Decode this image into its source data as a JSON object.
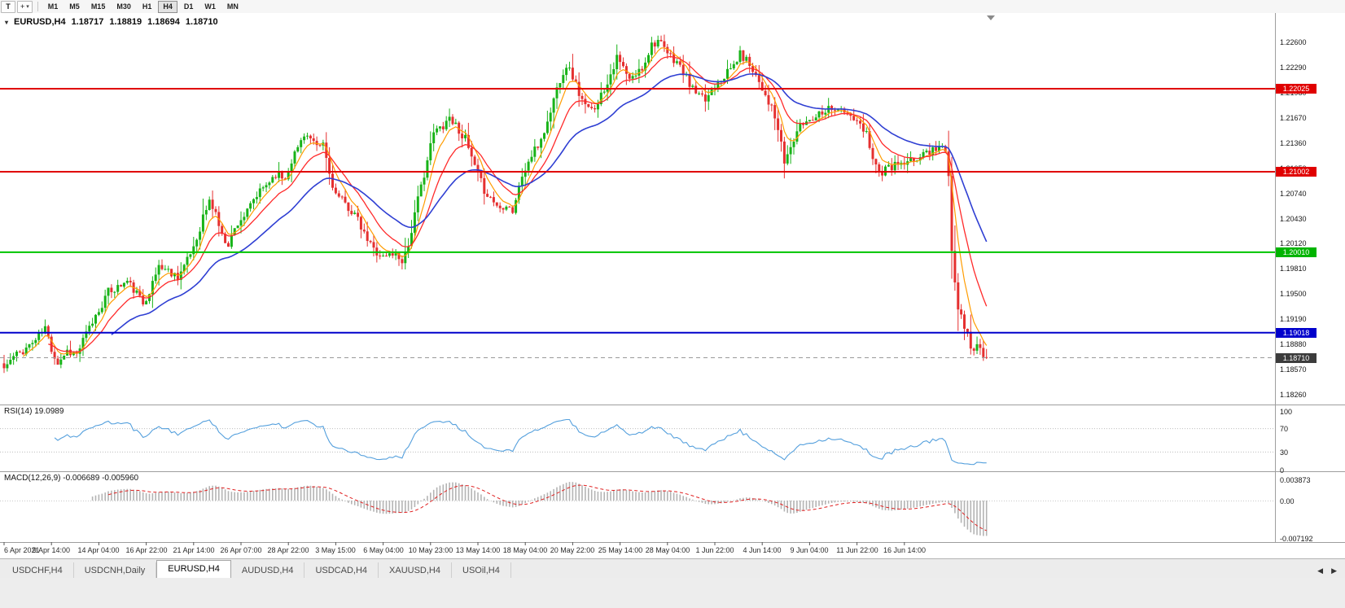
{
  "icons": {
    "collapse_arrow": "▾",
    "dropdown_caret": "▾",
    "cursor_tool": "+",
    "tabs_left": "◀",
    "tabs_right": "▶"
  },
  "toolbar": {
    "text_tool_label": "T",
    "timeframes": [
      "M1",
      "M5",
      "M15",
      "M30",
      "H1",
      "H4",
      "D1",
      "W1",
      "MN"
    ],
    "active_timeframe": "H4"
  },
  "chart_header": {
    "symbol_period": "EURUSD,H4",
    "open": "1.18717",
    "high": "1.18819",
    "low": "1.18694",
    "close": "1.18710"
  },
  "price_axis": {
    "gridline_labels": [
      "1.22600",
      "1.22290",
      "1.21980",
      "1.21670",
      "1.21360",
      "1.21050",
      "1.20740",
      "1.20430",
      "1.20120",
      "1.19810",
      "1.19500",
      "1.19190",
      "1.18880",
      "1.18570",
      "1.18260"
    ]
  },
  "levels": [
    {
      "value": "1.22025",
      "price": 1.22025,
      "color": "#e00000",
      "style": "solid",
      "width": 2,
      "badge_bg": "#e00000"
    },
    {
      "value": "1.21002",
      "price": 1.21002,
      "color": "#e00000",
      "style": "solid",
      "width": 2,
      "badge_bg": "#e00000"
    },
    {
      "value": "1.20010",
      "price": 1.2001,
      "color": "#00c400",
      "style": "solid",
      "width": 2,
      "badge_bg": "#00b400"
    },
    {
      "value": "1.19018",
      "price": 1.19018,
      "color": "#0000cc",
      "style": "solid",
      "width": 2,
      "badge_bg": "#0000cc"
    },
    {
      "value": "1.18710",
      "price": 1.1871,
      "color": "#999999",
      "style": "dashed",
      "width": 1,
      "badge_bg": "#3c3c3c"
    }
  ],
  "time_axis": {
    "labels": [
      "6 Apr 2021",
      "9 Apr 14:00",
      "14 Apr 04:00",
      "16 Apr 22:00",
      "21 Apr 14:00",
      "26 Apr 07:00",
      "28 Apr 22:00",
      "3 May 15:00",
      "6 May 04:00",
      "10 May 23:00",
      "13 May 14:00",
      "18 May 04:00",
      "20 May 22:00",
      "25 May 14:00",
      "28 May 04:00",
      "1 Jun 22:00",
      "4 Jun 14:00",
      "9 Jun 04:00",
      "11 Jun 22:00",
      "16 Jun 14:00"
    ]
  },
  "rsi_panel": {
    "title": "RSI(14) 19.0989",
    "axis_labels": [
      "100",
      "70",
      "30",
      "0"
    ],
    "dotted_levels": [
      70,
      30
    ],
    "line_color": "#55a0dd"
  },
  "macd_panel": {
    "title": "MACD(12,26,9) -0.006689 -0.005960",
    "axis_labels": [
      "0.003873",
      "0.00",
      "-0.007192"
    ],
    "hist_color": "#b4b4b4",
    "signal_color": "#e02020"
  },
  "tabs": {
    "items": [
      "USDCHF,H4",
      "USDCNH,Daily",
      "EURUSD,H4",
      "AUDUSD,H4",
      "USDCAD,H4",
      "XAUUSD,H4",
      "USOil,H4"
    ],
    "active": "EURUSD,H4"
  },
  "chart_data": {
    "type": "candlestick",
    "symbol": "EURUSD",
    "period": "H4",
    "bar_count": 312,
    "noise_seed": 11,
    "up_color": "#18b318",
    "down_color": "#e53030",
    "last_bar": {
      "o": 1.18717,
      "h": 1.18819,
      "l": 1.18694,
      "c": 1.1871
    },
    "support_resistance": [
      1.22025,
      1.21002,
      1.2001,
      1.19018
    ],
    "current_price": 1.1871,
    "rsi_period": 14,
    "rsi_last": 19.0989,
    "macd": {
      "fast": 12,
      "slow": 26,
      "signal": 9,
      "last": -0.006689,
      "signal_last": -0.00596,
      "axis_max": 0.003873,
      "axis_min": -0.007192
    },
    "moving_averages": [
      {
        "period": 6,
        "color": "#ff9c00",
        "width": 1.2
      },
      {
        "period": 14,
        "color": "#ff2a2a",
        "width": 1.3
      },
      {
        "period": 34,
        "color": "#2f3fd3",
        "width": 1.6
      }
    ],
    "close_anchors": [
      [
        0,
        1.1858
      ],
      [
        3,
        1.1872
      ],
      [
        6,
        1.188
      ],
      [
        10,
        1.1893
      ],
      [
        13,
        1.1908
      ],
      [
        15,
        1.1882
      ],
      [
        17,
        1.1865
      ],
      [
        20,
        1.188
      ],
      [
        23,
        1.1875
      ],
      [
        26,
        1.19
      ],
      [
        30,
        1.193
      ],
      [
        33,
        1.1952
      ],
      [
        36,
        1.1958
      ],
      [
        39,
        1.1965
      ],
      [
        42,
        1.195
      ],
      [
        44,
        1.1938
      ],
      [
        47,
        1.1962
      ],
      [
        49,
        1.1985
      ],
      [
        52,
        1.1978
      ],
      [
        55,
        1.1972
      ],
      [
        58,
        1.199
      ],
      [
        61,
        1.2018
      ],
      [
        63,
        1.2045
      ],
      [
        65,
        1.2063
      ],
      [
        67,
        1.205
      ],
      [
        69,
        1.202
      ],
      [
        71,
        1.2012
      ],
      [
        74,
        1.2038
      ],
      [
        77,
        1.205
      ],
      [
        79,
        1.2065
      ],
      [
        82,
        1.208
      ],
      [
        86,
        1.2098
      ],
      [
        89,
        1.2092
      ],
      [
        91,
        1.2115
      ],
      [
        93,
        1.213
      ],
      [
        95,
        1.2148
      ],
      [
        97,
        1.214
      ],
      [
        99,
        1.2128
      ],
      [
        101,
        1.2135
      ],
      [
        103,
        1.2098
      ],
      [
        105,
        1.2072
      ],
      [
        108,
        1.206
      ],
      [
        111,
        1.2048
      ],
      [
        114,
        1.2022
      ],
      [
        117,
        1.2005
      ],
      [
        120,
        1.1995
      ],
      [
        123,
        1.2
      ],
      [
        126,
        1.1992
      ],
      [
        128,
        1.201
      ],
      [
        131,
        1.2065
      ],
      [
        134,
        1.2115
      ],
      [
        136,
        1.2148
      ],
      [
        139,
        1.2158
      ],
      [
        141,
        1.2168
      ],
      [
        144,
        1.2152
      ],
      [
        146,
        1.214
      ],
      [
        149,
        1.2105
      ],
      [
        152,
        1.2078
      ],
      [
        154,
        1.2068
      ],
      [
        157,
        1.2055
      ],
      [
        159,
        1.2062
      ],
      [
        161,
        1.2052
      ],
      [
        164,
        1.2095
      ],
      [
        167,
        1.212
      ],
      [
        169,
        1.2132
      ],
      [
        172,
        1.216
      ],
      [
        174,
        1.219
      ],
      [
        176,
        1.2215
      ],
      [
        178,
        1.2232
      ],
      [
        180,
        1.2218
      ],
      [
        182,
        1.2197
      ],
      [
        184,
        1.218
      ],
      [
        186,
        1.2175
      ],
      [
        188,
        1.2188
      ],
      [
        190,
        1.2202
      ],
      [
        192,
        1.2222
      ],
      [
        194,
        1.224
      ],
      [
        196,
        1.2228
      ],
      [
        198,
        1.2212
      ],
      [
        200,
        1.222
      ],
      [
        202,
        1.2228
      ],
      [
        205,
        1.2258
      ],
      [
        207,
        1.2262
      ],
      [
        209,
        1.225
      ],
      [
        211,
        1.2242
      ],
      [
        213,
        1.2236
      ],
      [
        215,
        1.2222
      ],
      [
        218,
        1.2202
      ],
      [
        220,
        1.2192
      ],
      [
        222,
        1.2188
      ],
      [
        224,
        1.2202
      ],
      [
        226,
        1.2214
      ],
      [
        229,
        1.2222
      ],
      [
        231,
        1.2232
      ],
      [
        233,
        1.2245
      ],
      [
        235,
        1.2238
      ],
      [
        237,
        1.2228
      ],
      [
        239,
        1.2212
      ],
      [
        241,
        1.2196
      ],
      [
        243,
        1.2178
      ],
      [
        245,
        1.2152
      ],
      [
        247,
        1.2112
      ],
      [
        249,
        1.213
      ],
      [
        251,
        1.215
      ],
      [
        253,
        1.216
      ],
      [
        255,
        1.2165
      ],
      [
        257,
        1.217
      ],
      [
        259,
        1.2176
      ],
      [
        262,
        1.218
      ],
      [
        264,
        1.2178
      ],
      [
        266,
        1.2172
      ],
      [
        269,
        1.2165
      ],
      [
        271,
        1.2155
      ],
      [
        273,
        1.2148
      ],
      [
        275,
        1.212
      ],
      [
        277,
        1.2098
      ],
      [
        279,
        1.2102
      ],
      [
        281,
        1.2106
      ],
      [
        283,
        1.211
      ],
      [
        285,
        1.2108
      ],
      [
        288,
        1.2114
      ],
      [
        290,
        1.212
      ],
      [
        292,
        1.2124
      ],
      [
        294,
        1.2128
      ],
      [
        296,
        1.2132
      ],
      [
        298,
        1.2126
      ],
      [
        299,
        1.209
      ],
      [
        300,
        1.2
      ],
      [
        301,
        1.1968
      ],
      [
        302,
        1.1935
      ],
      [
        303,
        1.1928
      ],
      [
        304,
        1.1912
      ],
      [
        305,
        1.1898
      ],
      [
        306,
        1.1885
      ],
      [
        307,
        1.1878
      ],
      [
        308,
        1.189
      ],
      [
        309,
        1.1885
      ],
      [
        310,
        1.18717
      ],
      [
        311,
        1.1871
      ]
    ]
  }
}
